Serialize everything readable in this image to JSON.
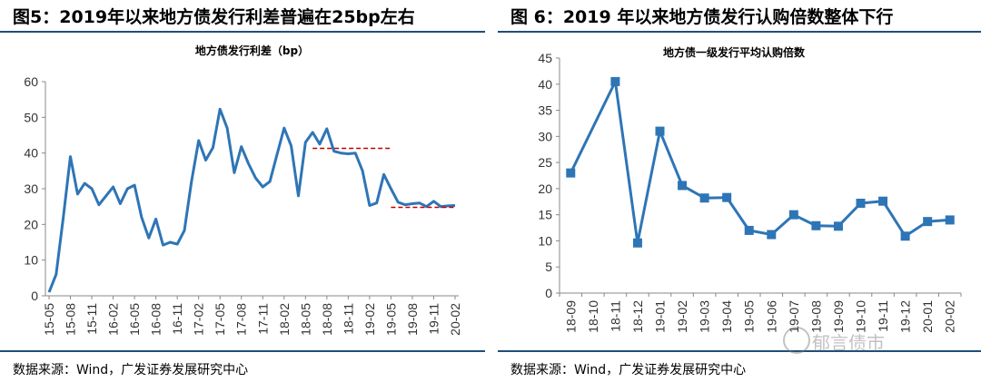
{
  "left": {
    "fig_title": "图5：2019年以来地方债发行利差普遍在25bp左右",
    "source": "数据来源：Wind，广发证券发展研究中心"
  },
  "right": {
    "fig_title": "图 6：2019 年以来地方债发行认购倍数整体下行",
    "source": "数据来源：Wind，广发证券发展研究中心"
  },
  "watermark": "郁言债市",
  "colors": {
    "line": "#2e75b6",
    "ref": "#c00000",
    "rule": "#1f4e79",
    "axis": "#888888"
  },
  "chart_data": [
    {
      "type": "line",
      "title": "地方债发行利差（bp）",
      "ylim": [
        0,
        60
      ],
      "yticks": [
        0,
        10,
        20,
        30,
        40,
        50,
        60
      ],
      "xticks": [
        "15-05",
        "15-08",
        "15-11",
        "16-02",
        "16-05",
        "16-08",
        "16-11",
        "17-02",
        "17-05",
        "17-08",
        "17-11",
        "18-02",
        "18-05",
        "18-08",
        "18-11",
        "19-02",
        "19-05",
        "19-08",
        "19-11",
        "20-02"
      ],
      "x": [
        "15-05",
        "15-06",
        "15-07",
        "15-08",
        "15-09",
        "15-10",
        "15-11",
        "15-12",
        "16-01",
        "16-02",
        "16-03",
        "16-04",
        "16-05",
        "16-06",
        "16-07",
        "16-08",
        "16-09",
        "16-10",
        "16-11",
        "16-12",
        "17-01",
        "17-02",
        "17-03",
        "17-04",
        "17-05",
        "17-06",
        "17-07",
        "17-08",
        "17-09",
        "17-10",
        "17-11",
        "17-12",
        "18-01",
        "18-02",
        "18-03",
        "18-04",
        "18-05",
        "18-06",
        "18-07",
        "18-08",
        "18-09",
        "18-10",
        "18-11",
        "18-12",
        "19-01",
        "19-02",
        "19-03",
        "19-04",
        "19-05",
        "19-06",
        "19-07",
        "19-08",
        "19-09",
        "19-10",
        "19-11",
        "19-12",
        "20-01",
        "20-02"
      ],
      "values": [
        1,
        6,
        22,
        39,
        28.5,
        31.5,
        30,
        25.5,
        28,
        30.5,
        25.8,
        30,
        31,
        22,
        16.2,
        21.5,
        14.2,
        15,
        14.5,
        18.3,
        32,
        43.5,
        38,
        41.5,
        52.3,
        47,
        34.5,
        41.8,
        37,
        33,
        30.5,
        32,
        39.5,
        47,
        42,
        28,
        43,
        45.8,
        42.5,
        46.8,
        40.5,
        40,
        39.8,
        40,
        35,
        25.3,
        26,
        34,
        30,
        26.2,
        25.5,
        25.8,
        26,
        25,
        26.5,
        25,
        25.2,
        25.3
      ],
      "reference_lines": [
        {
          "from": "18-06",
          "to": "19-05",
          "y": 41.3
        },
        {
          "from": "19-05",
          "to": "20-02",
          "y": 24.8
        }
      ],
      "grid": false,
      "legend": "none"
    },
    {
      "type": "line",
      "title": "地方债一级发行平均认购倍数",
      "ylim": [
        0,
        45
      ],
      "yticks": [
        0,
        5,
        10,
        15,
        20,
        25,
        30,
        35,
        40,
        45
      ],
      "x": [
        "18-09",
        "18-10",
        "18-11",
        "18-12",
        "19-01",
        "19-02",
        "19-03",
        "19-04",
        "19-05",
        "19-06",
        "19-07",
        "19-08",
        "19-09",
        "19-10",
        "19-11",
        "19-12",
        "20-01",
        "20-02"
      ],
      "values": [
        23,
        null,
        40.5,
        9.6,
        31,
        20.6,
        18.2,
        18.3,
        12,
        11.2,
        15,
        12.9,
        12.8,
        17.2,
        17.6,
        10.9,
        13.7,
        14
      ],
      "markers": "square",
      "grid": false,
      "legend": "none"
    }
  ]
}
